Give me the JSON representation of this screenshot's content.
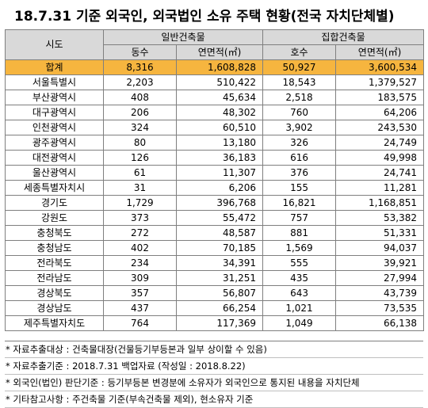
{
  "title": "18.7.31  기준 외국인, 외국법인 소유 주택 현황(전국 자치단체별)",
  "headers": {
    "region": "시도",
    "general_group": "일반건축물",
    "collective_group": "집합건축물",
    "general_count": "동수",
    "general_area": "연면적(㎡)",
    "collective_count": "호수",
    "collective_area": "연면적(㎡)"
  },
  "total": {
    "region": "합계",
    "general_count": "8,316",
    "general_area": "1,608,828",
    "collective_count": "50,927",
    "collective_area": "3,600,534"
  },
  "rows": [
    {
      "region": "서울특별시",
      "general_count": "2,203",
      "general_area": "510,422",
      "collective_count": "18,543",
      "collective_area": "1,379,527"
    },
    {
      "region": "부산광역시",
      "general_count": "408",
      "general_area": "45,634",
      "collective_count": "2,518",
      "collective_area": "183,575"
    },
    {
      "region": "대구광역시",
      "general_count": "206",
      "general_area": "48,302",
      "collective_count": "760",
      "collective_area": "64,206"
    },
    {
      "region": "인천광역시",
      "general_count": "324",
      "general_area": "60,510",
      "collective_count": "3,902",
      "collective_area": "243,530"
    },
    {
      "region": "광주광역시",
      "general_count": "80",
      "general_area": "13,180",
      "collective_count": "326",
      "collective_area": "24,749"
    },
    {
      "region": "대전광역시",
      "general_count": "126",
      "general_area": "36,183",
      "collective_count": "616",
      "collective_area": "49,998"
    },
    {
      "region": "울산광역시",
      "general_count": "61",
      "general_area": "11,307",
      "collective_count": "376",
      "collective_area": "24,741"
    },
    {
      "region": "세종특별자치시",
      "general_count": "31",
      "general_area": "6,206",
      "collective_count": "155",
      "collective_area": "11,281"
    },
    {
      "region": "경기도",
      "general_count": "1,729",
      "general_area": "396,768",
      "collective_count": "16,821",
      "collective_area": "1,168,851"
    },
    {
      "region": "강원도",
      "general_count": "373",
      "general_area": "55,472",
      "collective_count": "757",
      "collective_area": "53,382"
    },
    {
      "region": "충청북도",
      "general_count": "272",
      "general_area": "48,587",
      "collective_count": "881",
      "collective_area": "51,331"
    },
    {
      "region": "충청남도",
      "general_count": "402",
      "general_area": "70,185",
      "collective_count": "1,569",
      "collective_area": "94,037"
    },
    {
      "region": "전라북도",
      "general_count": "234",
      "general_area": "34,391",
      "collective_count": "555",
      "collective_area": "39,921"
    },
    {
      "region": "전라남도",
      "general_count": "309",
      "general_area": "31,251",
      "collective_count": "435",
      "collective_area": "27,994"
    },
    {
      "region": "경상북도",
      "general_count": "357",
      "general_area": "56,807",
      "collective_count": "643",
      "collective_area": "43,739"
    },
    {
      "region": "경상남도",
      "general_count": "437",
      "general_area": "66,254",
      "collective_count": "1,021",
      "collective_area": "73,535"
    },
    {
      "region": "제주특별자치도",
      "general_count": "764",
      "general_area": "117,369",
      "collective_count": "1,049",
      "collective_area": "66,138"
    }
  ],
  "notes": [
    "* 자료추출대상 : 건축물대장(건물등기부등본과 일부 상이할 수 있음)",
    "* 자료추출기준 : 2018.7.31 백업자료 (작성일 : 2018.8.22)",
    "* 외국인(법인) 판단기준 : 등기부등본 변경분에 소유자가 외국인으로 통지된 내용을 자치단체",
    "* 기타참고사항 : 주건축물 기준(부속건축물 제외), 현소유자 기준"
  ]
}
